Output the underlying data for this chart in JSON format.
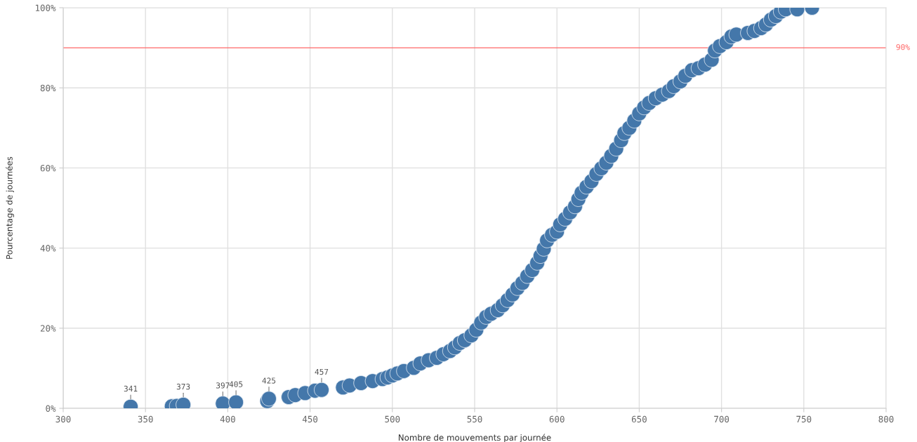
{
  "chart_data": {
    "type": "scatter",
    "xlabel": "Nombre de mouvements par journée",
    "ylabel": "Pourcentage de journées",
    "x": [
      341,
      366,
      369,
      373,
      397,
      405,
      424,
      425,
      437,
      441,
      447,
      453,
      457,
      470,
      474,
      481,
      488,
      494,
      497,
      500,
      503,
      507,
      513,
      517,
      522,
      527,
      531,
      535,
      538,
      541,
      544,
      548,
      551,
      554,
      557,
      560,
      564,
      567,
      570,
      573,
      576,
      579,
      582,
      585,
      588,
      590,
      592,
      594,
      597,
      600,
      602,
      605,
      608,
      611,
      613,
      615,
      618,
      621,
      624,
      627,
      630,
      633,
      636,
      639,
      641,
      644,
      647,
      650,
      653,
      656,
      660,
      664,
      668,
      671,
      675,
      678,
      682,
      686,
      690,
      694,
      696,
      699,
      703,
      706,
      709,
      716,
      720,
      724,
      727,
      730,
      733,
      736,
      739,
      746,
      755
    ],
    "series": [
      {
        "color": "#4477aa",
        "values": [
          0.4,
          0.5,
          0.6,
          0.9,
          1.2,
          1.5,
          1.8,
          2.4,
          2.8,
          3.3,
          3.8,
          4.4,
          4.6,
          5.2,
          5.7,
          6.3,
          6.8,
          7.3,
          7.7,
          8.2,
          8.7,
          9.3,
          10.1,
          11.2,
          12,
          12.6,
          13.5,
          14.3,
          15.2,
          16.3,
          17,
          18.2,
          19.6,
          21.4,
          22.8,
          23.6,
          24.5,
          25.7,
          27,
          28.4,
          30,
          31.3,
          33,
          34.5,
          36.3,
          38,
          39.8,
          41.9,
          43.3,
          44.1,
          45.9,
          47.3,
          48.9,
          50.4,
          52.2,
          53.8,
          55.3,
          56.7,
          58.5,
          59.9,
          61.3,
          63,
          64.8,
          66.9,
          68.7,
          70,
          71.8,
          73.6,
          75.1,
          76.2,
          77.4,
          78.3,
          79.2,
          80.4,
          81.6,
          83,
          84.4,
          84.9,
          85.8,
          87,
          89.3,
          90.4,
          91.4,
          92.8,
          93.3,
          93.7,
          94.2,
          94.9,
          95.8,
          97,
          97.9,
          99,
          99.6,
          99.6,
          100
        ]
      }
    ],
    "marker": "circle",
    "xlim": [
      300,
      800
    ],
    "xticks": [
      300,
      350,
      400,
      450,
      500,
      550,
      600,
      650,
      700,
      750,
      800
    ],
    "ylim": [
      0,
      100
    ],
    "yticks": [
      {
        "value": 0,
        "label": "0%"
      },
      {
        "value": 20,
        "label": "20%"
      },
      {
        "value": 40,
        "label": "40%"
      },
      {
        "value": 60,
        "label": "60%"
      },
      {
        "value": 80,
        "label": "80%"
      },
      {
        "value": 100,
        "label": "100%"
      }
    ],
    "grid": true,
    "ref_lines": [
      {
        "axis": "y",
        "value": 90,
        "label": "90%",
        "color": "#ff6666"
      }
    ],
    "annotations": [
      {
        "text": "341",
        "x": 341,
        "y": 0.4
      },
      {
        "text": "373",
        "x": 373,
        "y": 0.9
      },
      {
        "text": "397",
        "x": 397,
        "y": 1.2
      },
      {
        "text": "405",
        "x": 405,
        "y": 1.5
      },
      {
        "text": "425",
        "x": 425,
        "y": 2.4
      },
      {
        "text": "457",
        "x": 457,
        "y": 4.6
      }
    ]
  }
}
